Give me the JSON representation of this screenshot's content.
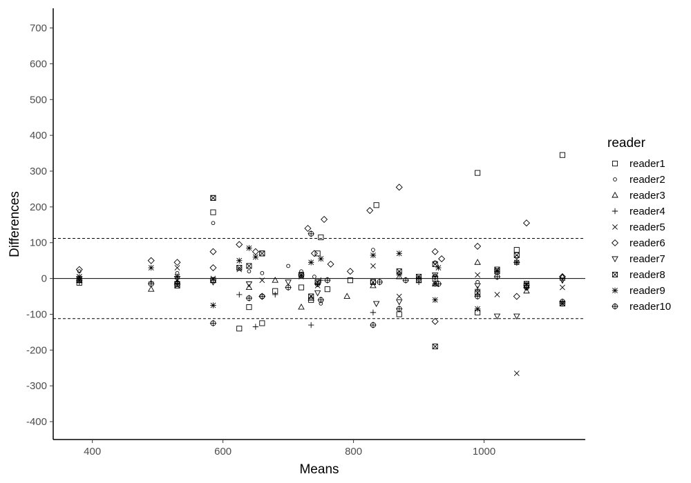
{
  "chart_data": {
    "type": "scatter",
    "xlabel": "Means",
    "ylabel": "Differences",
    "xlim": [
      340,
      1155
    ],
    "ylim": [
      -450,
      755
    ],
    "x_ticks": [
      400,
      600,
      800,
      1000
    ],
    "y_ticks": [
      -400,
      -300,
      -200,
      -100,
      0,
      100,
      200,
      300,
      400,
      500,
      600,
      700
    ],
    "x_tick_labels": [
      "400",
      "600",
      "800",
      "1000"
    ],
    "y_tick_labels": [
      "-400",
      "-300",
      "-200",
      "-100",
      "0",
      "100",
      "200",
      "300",
      "400",
      "500",
      "600",
      "700"
    ],
    "reference_lines": [
      {
        "y": 0,
        "style": "solid"
      },
      {
        "y": 112,
        "style": "dashed"
      },
      {
        "y": -112,
        "style": "dashed"
      }
    ],
    "grid": false,
    "legend": {
      "title": "reader",
      "position": "right"
    },
    "series": [
      {
        "name": "reader1",
        "marker": "square",
        "points": [
          [
            380,
            -12
          ],
          [
            530,
            -15
          ],
          [
            585,
            225
          ],
          [
            585,
            185
          ],
          [
            585,
            -5
          ],
          [
            625,
            -140
          ],
          [
            640,
            -80
          ],
          [
            660,
            -125
          ],
          [
            660,
            70
          ],
          [
            680,
            -35
          ],
          [
            720,
            -25
          ],
          [
            735,
            -60
          ],
          [
            745,
            70
          ],
          [
            750,
            115
          ],
          [
            760,
            -30
          ],
          [
            795,
            -5
          ],
          [
            830,
            -10
          ],
          [
            835,
            205
          ],
          [
            870,
            -100
          ],
          [
            900,
            -5
          ],
          [
            925,
            0
          ],
          [
            990,
            295
          ],
          [
            990,
            -95
          ],
          [
            1020,
            20
          ],
          [
            1050,
            80
          ],
          [
            1065,
            -20
          ],
          [
            1120,
            345
          ]
        ]
      },
      {
        "name": "reader2",
        "marker": "circle",
        "points": [
          [
            380,
            20
          ],
          [
            530,
            15
          ],
          [
            585,
            155
          ],
          [
            640,
            20
          ],
          [
            660,
            15
          ],
          [
            700,
            35
          ],
          [
            720,
            20
          ],
          [
            740,
            5
          ],
          [
            750,
            -70
          ],
          [
            830,
            80
          ],
          [
            870,
            15
          ],
          [
            925,
            45
          ],
          [
            990,
            -10
          ],
          [
            1050,
            60
          ],
          [
            1120,
            5
          ]
        ]
      },
      {
        "name": "reader3",
        "marker": "triangle",
        "points": [
          [
            380,
            -5
          ],
          [
            490,
            -30
          ],
          [
            530,
            -10
          ],
          [
            585,
            -5
          ],
          [
            640,
            -25
          ],
          [
            680,
            -5
          ],
          [
            720,
            -80
          ],
          [
            735,
            -55
          ],
          [
            790,
            -50
          ],
          [
            830,
            -20
          ],
          [
            870,
            5
          ],
          [
            925,
            -15
          ],
          [
            990,
            45
          ],
          [
            1065,
            -35
          ],
          [
            1120,
            5
          ]
        ]
      },
      {
        "name": "reader4",
        "marker": "plus",
        "points": [
          [
            380,
            -10
          ],
          [
            490,
            -10
          ],
          [
            530,
            -10
          ],
          [
            585,
            -5
          ],
          [
            625,
            -45
          ],
          [
            650,
            -135
          ],
          [
            680,
            -45
          ],
          [
            735,
            -130
          ],
          [
            750,
            -5
          ],
          [
            830,
            -95
          ],
          [
            870,
            10
          ],
          [
            900,
            -10
          ],
          [
            925,
            -15
          ],
          [
            990,
            -30
          ],
          [
            1065,
            -15
          ],
          [
            1120,
            -5
          ]
        ]
      },
      {
        "name": "reader5",
        "marker": "cross",
        "points": [
          [
            380,
            5
          ],
          [
            530,
            30
          ],
          [
            585,
            0
          ],
          [
            625,
            25
          ],
          [
            660,
            -5
          ],
          [
            720,
            5
          ],
          [
            745,
            -20
          ],
          [
            830,
            35
          ],
          [
            870,
            -50
          ],
          [
            925,
            -15
          ],
          [
            990,
            10
          ],
          [
            1020,
            -45
          ],
          [
            1050,
            -265
          ],
          [
            1120,
            -25
          ]
        ]
      },
      {
        "name": "reader6",
        "marker": "diamond",
        "points": [
          [
            380,
            25
          ],
          [
            490,
            50
          ],
          [
            530,
            45
          ],
          [
            585,
            75
          ],
          [
            585,
            30
          ],
          [
            625,
            95
          ],
          [
            650,
            75
          ],
          [
            660,
            -50
          ],
          [
            730,
            140
          ],
          [
            740,
            70
          ],
          [
            755,
            165
          ],
          [
            765,
            40
          ],
          [
            795,
            20
          ],
          [
            825,
            190
          ],
          [
            870,
            255
          ],
          [
            925,
            75
          ],
          [
            925,
            -120
          ],
          [
            935,
            55
          ],
          [
            990,
            90
          ],
          [
            1050,
            -50
          ],
          [
            1065,
            155
          ],
          [
            1120,
            5
          ]
        ]
      },
      {
        "name": "reader7",
        "marker": "triangle-down",
        "points": [
          [
            380,
            0
          ],
          [
            530,
            0
          ],
          [
            585,
            -10
          ],
          [
            640,
            -15
          ],
          [
            700,
            -10
          ],
          [
            745,
            -40
          ],
          [
            835,
            -70
          ],
          [
            870,
            -65
          ],
          [
            925,
            10
          ],
          [
            990,
            -20
          ],
          [
            1020,
            -105
          ],
          [
            1050,
            -105
          ],
          [
            1065,
            -25
          ],
          [
            1120,
            -5
          ]
        ]
      },
      {
        "name": "reader8",
        "marker": "square-cross",
        "points": [
          [
            380,
            -5
          ],
          [
            530,
            -20
          ],
          [
            585,
            225
          ],
          [
            625,
            30
          ],
          [
            640,
            35
          ],
          [
            660,
            70
          ],
          [
            720,
            10
          ],
          [
            735,
            -50
          ],
          [
            745,
            -10
          ],
          [
            830,
            -10
          ],
          [
            870,
            20
          ],
          [
            900,
            5
          ],
          [
            925,
            -190
          ],
          [
            925,
            40
          ],
          [
            990,
            -40
          ],
          [
            1020,
            25
          ],
          [
            1050,
            65
          ],
          [
            1065,
            -15
          ],
          [
            1120,
            -70
          ]
        ]
      },
      {
        "name": "reader9",
        "marker": "asterisk",
        "points": [
          [
            380,
            5
          ],
          [
            490,
            30
          ],
          [
            530,
            5
          ],
          [
            585,
            -75
          ],
          [
            625,
            50
          ],
          [
            640,
            85
          ],
          [
            650,
            60
          ],
          [
            735,
            45
          ],
          [
            750,
            55
          ],
          [
            830,
            65
          ],
          [
            870,
            70
          ],
          [
            925,
            -60
          ],
          [
            930,
            30
          ],
          [
            990,
            -85
          ],
          [
            1020,
            20
          ],
          [
            1050,
            45
          ],
          [
            1120,
            -70
          ]
        ]
      },
      {
        "name": "reader10",
        "marker": "circle-plus",
        "points": [
          [
            380,
            -5
          ],
          [
            490,
            -15
          ],
          [
            530,
            -15
          ],
          [
            585,
            -125
          ],
          [
            640,
            -55
          ],
          [
            660,
            -50
          ],
          [
            700,
            -25
          ],
          [
            720,
            10
          ],
          [
            735,
            125
          ],
          [
            745,
            -15
          ],
          [
            750,
            -60
          ],
          [
            760,
            -5
          ],
          [
            830,
            -130
          ],
          [
            840,
            -10
          ],
          [
            870,
            -85
          ],
          [
            880,
            -5
          ],
          [
            900,
            0
          ],
          [
            925,
            5
          ],
          [
            930,
            -15
          ],
          [
            990,
            -50
          ],
          [
            1020,
            5
          ],
          [
            1050,
            45
          ],
          [
            1065,
            -25
          ],
          [
            1120,
            -65
          ]
        ]
      }
    ]
  }
}
